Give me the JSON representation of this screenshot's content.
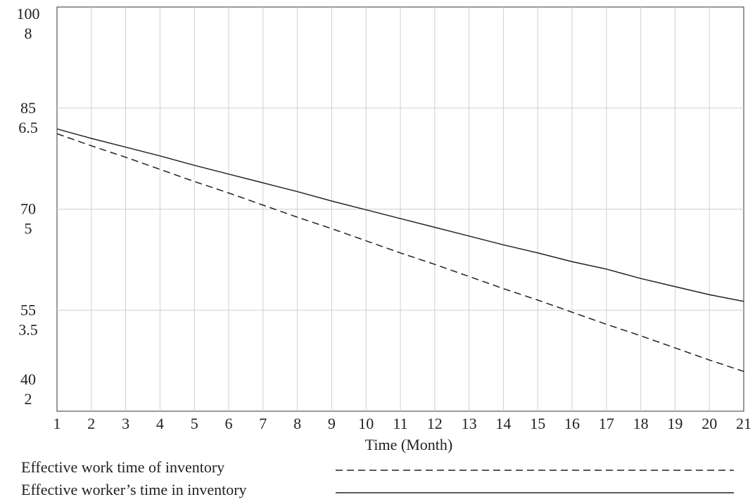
{
  "chart_data": {
    "type": "line",
    "x_label": "Time (Month)",
    "x": [
      1,
      2,
      3,
      4,
      5,
      6,
      7,
      8,
      9,
      10,
      11,
      12,
      13,
      14,
      15,
      16,
      17,
      18,
      19,
      20,
      21
    ],
    "xlim": [
      1,
      21
    ],
    "xticks": [
      1,
      2,
      3,
      4,
      5,
      6,
      7,
      8,
      9,
      10,
      11,
      12,
      13,
      14,
      15,
      16,
      17,
      18,
      19,
      20,
      21
    ],
    "ylim": [
      40,
      100
    ],
    "yticks": [
      40,
      55,
      70,
      85,
      100
    ],
    "y2lim": [
      2,
      8
    ],
    "y2ticks": [
      2,
      3.5,
      5,
      6.5,
      8
    ],
    "grid": true,
    "series": [
      {
        "name": "Effective work time of inventory",
        "color": "#222222",
        "dash": "dashed",
        "axis": "y",
        "values": [
          81.2,
          79.4,
          77.7,
          75.9,
          74.1,
          72.4,
          70.6,
          68.8,
          67.1,
          65.3,
          63.5,
          61.8,
          60.0,
          58.2,
          56.5,
          54.7,
          52.9,
          51.2,
          49.4,
          47.6,
          45.9
        ]
      },
      {
        "name": "Effective worker’s time in inventory",
        "color": "#222222",
        "dash": "solid",
        "axis": "y2",
        "values": [
          6.19,
          6.05,
          5.92,
          5.79,
          5.65,
          5.52,
          5.39,
          5.26,
          5.12,
          4.99,
          4.86,
          4.73,
          4.6,
          4.47,
          4.35,
          4.22,
          4.11,
          3.97,
          3.85,
          3.73,
          3.63
        ]
      }
    ]
  }
}
